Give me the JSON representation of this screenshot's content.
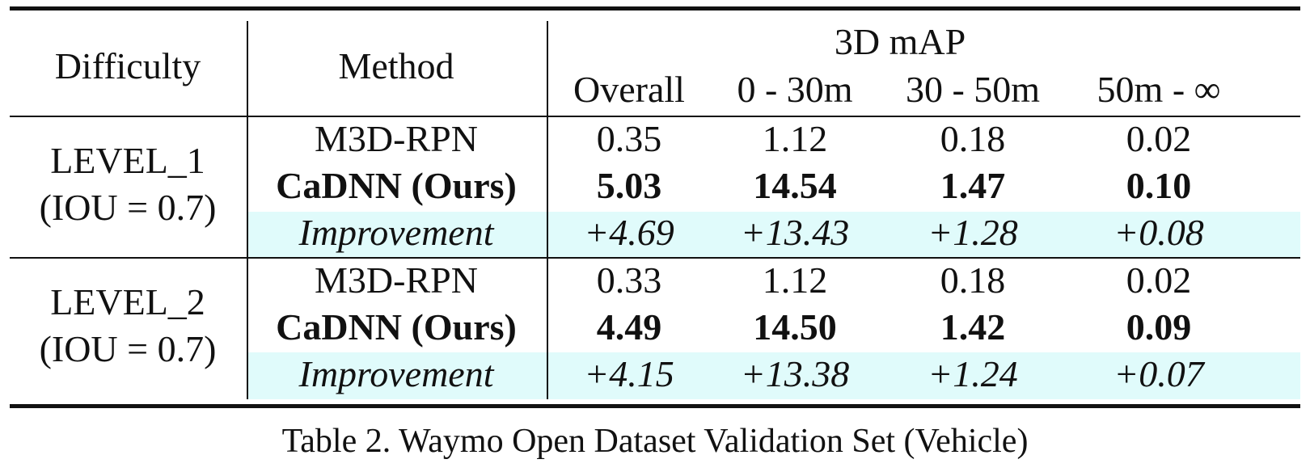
{
  "header": {
    "difficulty": "Difficulty",
    "method": "Method",
    "group": "3D mAP",
    "columns": [
      "Overall",
      "0 - 30m",
      "30 - 50m",
      "50m - ∞"
    ]
  },
  "groups": [
    {
      "level": "LEVEL_1",
      "iou": "(IOU = 0.7)",
      "rows": [
        {
          "method": "M3D-RPN",
          "values": [
            "0.35",
            "1.12",
            "0.18",
            "0.02"
          ],
          "style": "normal"
        },
        {
          "method": "CaDNN (Ours)",
          "values": [
            "5.03",
            "14.54",
            "1.47",
            "0.10"
          ],
          "style": "bold"
        },
        {
          "method": "Improvement",
          "values": [
            "+4.69",
            "+13.43",
            "+1.28",
            "+0.08"
          ],
          "style": "italic"
        }
      ]
    },
    {
      "level": "LEVEL_2",
      "iou": "(IOU = 0.7)",
      "rows": [
        {
          "method": "M3D-RPN",
          "values": [
            "0.33",
            "1.12",
            "0.18",
            "0.02"
          ],
          "style": "normal"
        },
        {
          "method": "CaDNN (Ours)",
          "values": [
            "4.49",
            "14.50",
            "1.42",
            "0.09"
          ],
          "style": "bold"
        },
        {
          "method": "Improvement",
          "values": [
            "+4.15",
            "+13.38",
            "+1.24",
            "+0.07"
          ],
          "style": "italic"
        }
      ]
    }
  ],
  "caption": "Table 2. Waymo Open Dataset Validation Set (Vehicle)",
  "colors": {
    "highlight": "#e0fbfb",
    "rule": "#111111"
  }
}
